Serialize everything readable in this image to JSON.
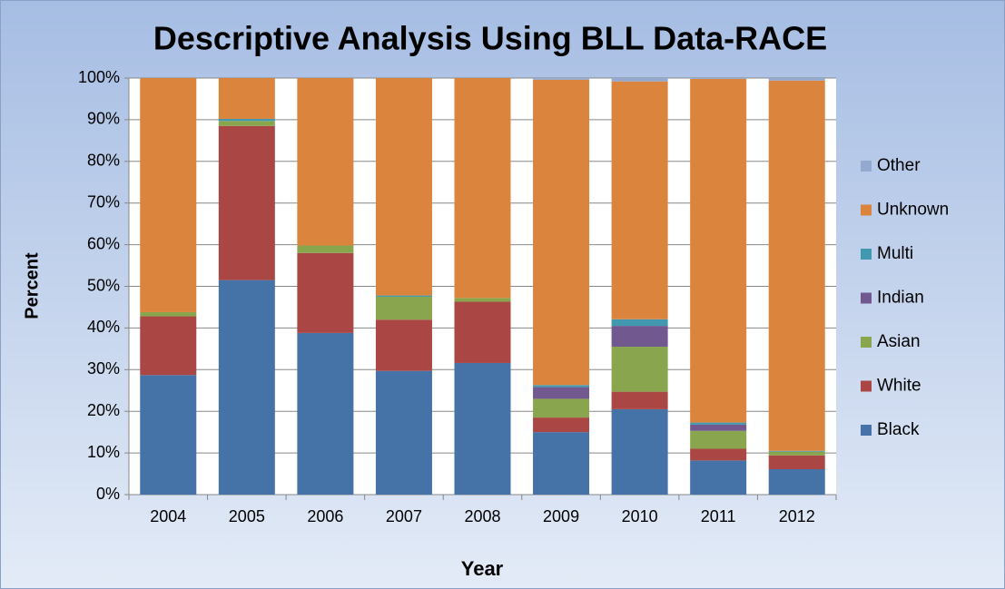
{
  "chart_data": {
    "type": "stacked_bar",
    "title": "Descriptive Analysis Using BLL Data-RACE",
    "x_label": "Year",
    "y_label": "Percent",
    "categories": [
      "2004",
      "2005",
      "2006",
      "2007",
      "2008",
      "2009",
      "2010",
      "2011",
      "2012"
    ],
    "series": [
      {
        "name": "Black",
        "color": "#4572a7",
        "values": [
          28.7,
          51.5,
          38.8,
          29.7,
          31.6,
          15.0,
          20.5,
          8.2,
          6.1
        ]
      },
      {
        "name": "White",
        "color": "#aa4643",
        "values": [
          14.1,
          37.0,
          19.2,
          12.3,
          14.7,
          3.5,
          4.2,
          2.8,
          3.3
        ]
      },
      {
        "name": "Asian",
        "color": "#89a54e",
        "values": [
          1.0,
          1.2,
          1.8,
          5.5,
          0.9,
          4.5,
          10.8,
          4.3,
          0.9
        ]
      },
      {
        "name": "Indian",
        "color": "#71588f",
        "values": [
          0,
          0,
          0,
          0,
          0,
          2.8,
          5.0,
          1.5,
          0
        ]
      },
      {
        "name": "Multi",
        "color": "#4198af",
        "values": [
          0,
          0.5,
          0,
          0.3,
          0,
          0.5,
          1.6,
          0.5,
          0.2
        ]
      },
      {
        "name": "Unknown",
        "color": "#db843d",
        "values": [
          56.2,
          9.8,
          40.2,
          52.2,
          52.8,
          73.3,
          57.1,
          82.5,
          88.9
        ]
      },
      {
        "name": "Other",
        "color": "#93a9cf",
        "values": [
          0,
          0,
          0,
          0,
          0,
          0.4,
          0.8,
          0.2,
          0.6
        ]
      }
    ],
    "ylim": [
      0,
      100
    ],
    "yticks": [
      {
        "value": 0,
        "label": "0%"
      },
      {
        "value": 10,
        "label": "10%"
      },
      {
        "value": 20,
        "label": "20%"
      },
      {
        "value": 30,
        "label": "30%"
      },
      {
        "value": 40,
        "label": "40%"
      },
      {
        "value": 50,
        "label": "50%"
      },
      {
        "value": 60,
        "label": "60%"
      },
      {
        "value": 70,
        "label": "70%"
      },
      {
        "value": 80,
        "label": "80%"
      },
      {
        "value": 90,
        "label": "90%"
      },
      {
        "value": 100,
        "label": "100%"
      }
    ],
    "grid": true,
    "legend": "right"
  }
}
